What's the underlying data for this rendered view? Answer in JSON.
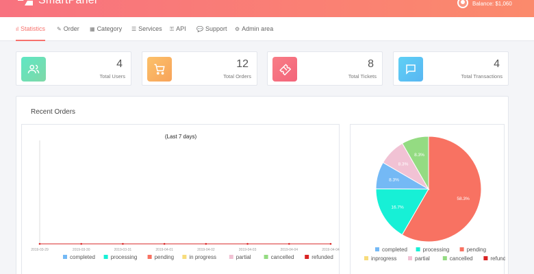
{
  "header": {
    "brand": "SmartPanel",
    "balance": "Balance: $1,060"
  },
  "nav": [
    {
      "label": "Statistics",
      "icon": "bar-chart-icon",
      "active": true
    },
    {
      "label": "Order",
      "icon": "edit-icon"
    },
    {
      "label": "Category",
      "icon": "grid-icon"
    },
    {
      "label": "Services",
      "icon": "list-icon"
    },
    {
      "label": "API",
      "icon": "key-icon"
    },
    {
      "label": "Support",
      "icon": "chat-icon"
    },
    {
      "label": "Admin area",
      "icon": "gear-icon"
    }
  ],
  "stats": [
    {
      "value": "4",
      "label": "Total Users",
      "icon": "users-icon",
      "color_from": "#5ee7c4",
      "color_to": "#7fd8a7"
    },
    {
      "value": "12",
      "label": "Total Orders",
      "icon": "cart-icon",
      "color_from": "#fcc16a",
      "color_to": "#f7a35a"
    },
    {
      "value": "8",
      "label": "Total Tickets",
      "icon": "ticket-icon",
      "color_from": "#f87d86",
      "color_to": "#f3647a"
    },
    {
      "value": "4",
      "label": "Total Transactions",
      "icon": "message-icon",
      "color_from": "#5fd0f5",
      "color_to": "#58b6f2"
    }
  ],
  "panel": {
    "title": "Recent Orders"
  },
  "statuses": [
    {
      "key": "completed",
      "color": "#74b9f5"
    },
    {
      "key": "processing",
      "color": "#17f0d6"
    },
    {
      "key": "pending",
      "color": "#f87262"
    },
    {
      "key": "in progress",
      "color": "#f7dc7c"
    },
    {
      "key": "partial",
      "color": "#f1c2d4"
    },
    {
      "key": "cancelled",
      "color": "#94db82"
    },
    {
      "key": "refunded",
      "color": "#d92424"
    }
  ],
  "chart_data": [
    {
      "type": "line",
      "title": "(Last 7 days)",
      "x": [
        "2019-03-29",
        "2019-03-30",
        "2019-03-31",
        "2019-04-01",
        "2019-04-02",
        "2019-04-03",
        "2019-04-04",
        "2019-04-04"
      ],
      "series": [
        {
          "name": "completed",
          "values": [
            0,
            0,
            0,
            0,
            0,
            0,
            0,
            0
          ]
        },
        {
          "name": "processing",
          "values": [
            0,
            0,
            0,
            0,
            0,
            0,
            0,
            0
          ]
        },
        {
          "name": "pending",
          "values": [
            0,
            0,
            0,
            0,
            0,
            0,
            0,
            0
          ]
        },
        {
          "name": "in progress",
          "values": [
            0,
            0,
            0,
            0,
            0,
            0,
            0,
            0
          ]
        },
        {
          "name": "partial",
          "values": [
            0,
            0,
            0,
            0,
            0,
            0,
            0,
            0
          ]
        },
        {
          "name": "cancelled",
          "values": [
            0,
            0,
            0,
            0,
            0,
            0,
            0,
            0
          ]
        },
        {
          "name": "refunded",
          "values": [
            0,
            0,
            0,
            0,
            0,
            0,
            0,
            0
          ]
        }
      ],
      "legend_position": "bottom",
      "grid": false
    },
    {
      "type": "pie",
      "slices": [
        {
          "name": "pending",
          "value": 58.3,
          "label": "58.3%",
          "color": "#f87262"
        },
        {
          "name": "processing",
          "value": 16.7,
          "label": "16.7%",
          "color": "#17f0d6"
        },
        {
          "name": "completed",
          "value": 8.3,
          "label": "8.3%",
          "color": "#74b9f5"
        },
        {
          "name": "partial",
          "value": 8.3,
          "label": "8.3%",
          "color": "#f1c2d4"
        },
        {
          "name": "cancelled",
          "value": 8.3,
          "label": "8.3%",
          "color": "#94db82"
        }
      ],
      "legend": [
        "completed",
        "processing",
        "pending",
        "inprogress",
        "partial",
        "cancelled",
        "refunded"
      ],
      "legend_colors": [
        "#74b9f5",
        "#17f0d6",
        "#f87262",
        "#f7dc7c",
        "#f1c2d4",
        "#94db82",
        "#d92424"
      ],
      "legend_position": "bottom"
    }
  ]
}
